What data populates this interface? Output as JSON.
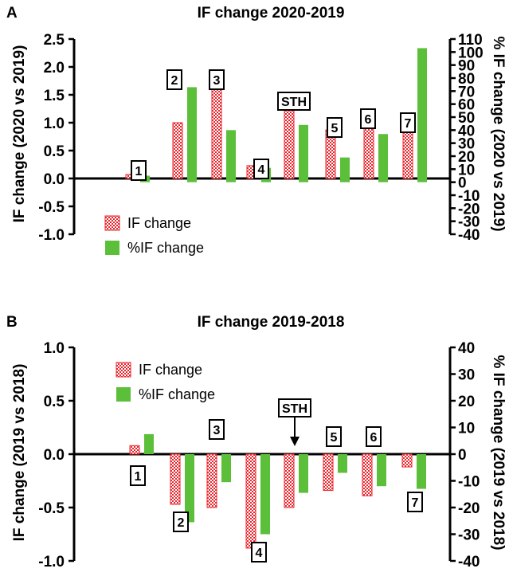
{
  "colors": {
    "if_change": "#e8262e",
    "pct_if_change": "#5cbf3a"
  },
  "chart_data": [
    {
      "panel": "A",
      "type": "bar",
      "title": "IF change 2020-2019",
      "ylabel": "IF change (2020 vs 2019)",
      "ylabel_right": "% IF change (2020 vs 2019)",
      "ylim": [
        -1.0,
        2.5
      ],
      "y_ticks": [
        "2.5",
        "2.0",
        "1.5",
        "1.0",
        "0.5",
        "0.0",
        "-0.5",
        "-1.0"
      ],
      "ylim_right": [
        -40,
        110
      ],
      "y_ticks_right": [
        "110",
        "100",
        "90",
        "80",
        "70",
        "60",
        "50",
        "40",
        "30",
        "20",
        "10",
        "0",
        "-10",
        "-20",
        "-30",
        "-40"
      ],
      "categories": [
        "1",
        "2",
        "3",
        "4",
        "STH",
        "5",
        "6",
        "7"
      ],
      "series": [
        {
          "name": "IF change",
          "axis": "left",
          "values": [
            0.07,
            1.0,
            1.65,
            0.23,
            1.28,
            0.87,
            1.07,
            0.9
          ]
        },
        {
          "name": "%IF change",
          "axis": "right",
          "values": [
            5,
            73,
            40,
            11,
            44,
            19,
            37,
            103
          ]
        }
      ],
      "legend": "bottom-left",
      "legend_entries": [
        "IF change",
        "%IF change"
      ]
    },
    {
      "panel": "B",
      "type": "bar",
      "title": "IF change 2019-2018",
      "ylabel": "IF change (2019 vs 2018)",
      "ylabel_right": "% IF change (2019 vs 2018)",
      "ylim": [
        -1.0,
        1.0
      ],
      "y_ticks": [
        "1.0",
        "0.5",
        "0.0",
        "-0.5",
        "-1.0"
      ],
      "ylim_right": [
        -40,
        40
      ],
      "y_ticks_right": [
        "40",
        "30",
        "20",
        "10",
        "0",
        "-10",
        "-20",
        "-30",
        "-40"
      ],
      "categories": [
        "1",
        "2",
        "3",
        "4",
        "STH",
        "5",
        "6",
        "7"
      ],
      "series": [
        {
          "name": "IF change",
          "axis": "left",
          "values": [
            0.08,
            -0.47,
            -0.5,
            -0.88,
            -0.5,
            -0.34,
            -0.39,
            -0.12
          ]
        },
        {
          "name": "%IF change",
          "axis": "right",
          "values": [
            7.5,
            -25.5,
            -10.5,
            -30,
            -14.5,
            -7,
            -12,
            -13
          ]
        }
      ],
      "legend": "top-left",
      "legend_entries": [
        "IF change",
        "%IF change"
      ]
    }
  ]
}
